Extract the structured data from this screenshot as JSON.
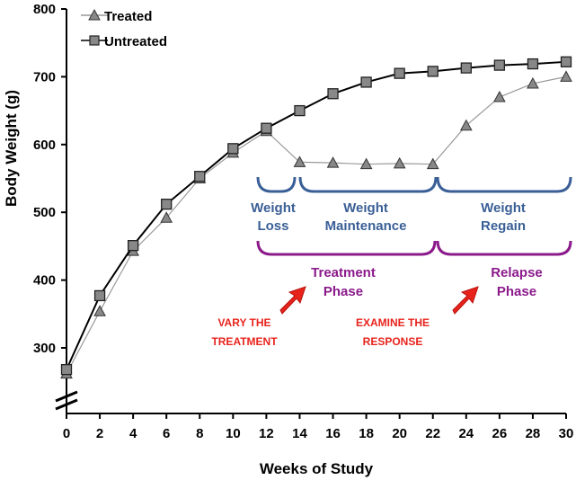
{
  "chart_data": {
    "type": "line",
    "xlabel": "Weeks of Study",
    "ylabel": "Body Weight (g)",
    "x": [
      0,
      2,
      4,
      6,
      8,
      10,
      12,
      14,
      16,
      18,
      20,
      22,
      24,
      26,
      28,
      30
    ],
    "x_ticks": [
      "0",
      "2",
      "4",
      "6",
      "8",
      "10",
      "12",
      "14",
      "16",
      "18",
      "20",
      "22",
      "24",
      "26",
      "28",
      "30"
    ],
    "xlim": [
      0,
      30
    ],
    "y_ticks": [
      "300",
      "400",
      "500",
      "600",
      "700",
      "800"
    ],
    "ylim": [
      250,
      800
    ],
    "axis_break": true,
    "legend_position": "top-left",
    "series": [
      {
        "name": "Treated",
        "marker": "triangle",
        "values": [
          262,
          354,
          443,
          492,
          550,
          588,
          620,
          574,
          573,
          571,
          572,
          571,
          628,
          670,
          690,
          700
        ]
      },
      {
        "name": "Untreated",
        "marker": "square",
        "values": [
          268,
          377,
          451,
          512,
          553,
          594,
          624,
          650,
          675,
          692,
          705,
          708,
          713,
          717,
          719,
          722
        ]
      }
    ],
    "annotations": {
      "weight_loss": [
        "Weight",
        "Loss"
      ],
      "weight_maintenance": [
        "Weight",
        "Maintenance"
      ],
      "weight_regain": [
        "Weight",
        "Regain"
      ],
      "treatment_phase": [
        "Treatment",
        "Phase"
      ],
      "relapse_phase": [
        "Relapse",
        "Phase"
      ],
      "vary_treatment": [
        "VARY THE",
        "TREATMENT"
      ],
      "examine_response": [
        "EXAMINE THE",
        "RESPONSE"
      ]
    }
  },
  "colors": {
    "treated_line": "#999999",
    "treated_marker": "#888888",
    "untreated_line": "#000000",
    "untreated_marker": "#888888",
    "bracket_blue": "#3a5f96",
    "bracket_purple": "#8b1a8b",
    "arrow_red": "#e8231c"
  }
}
